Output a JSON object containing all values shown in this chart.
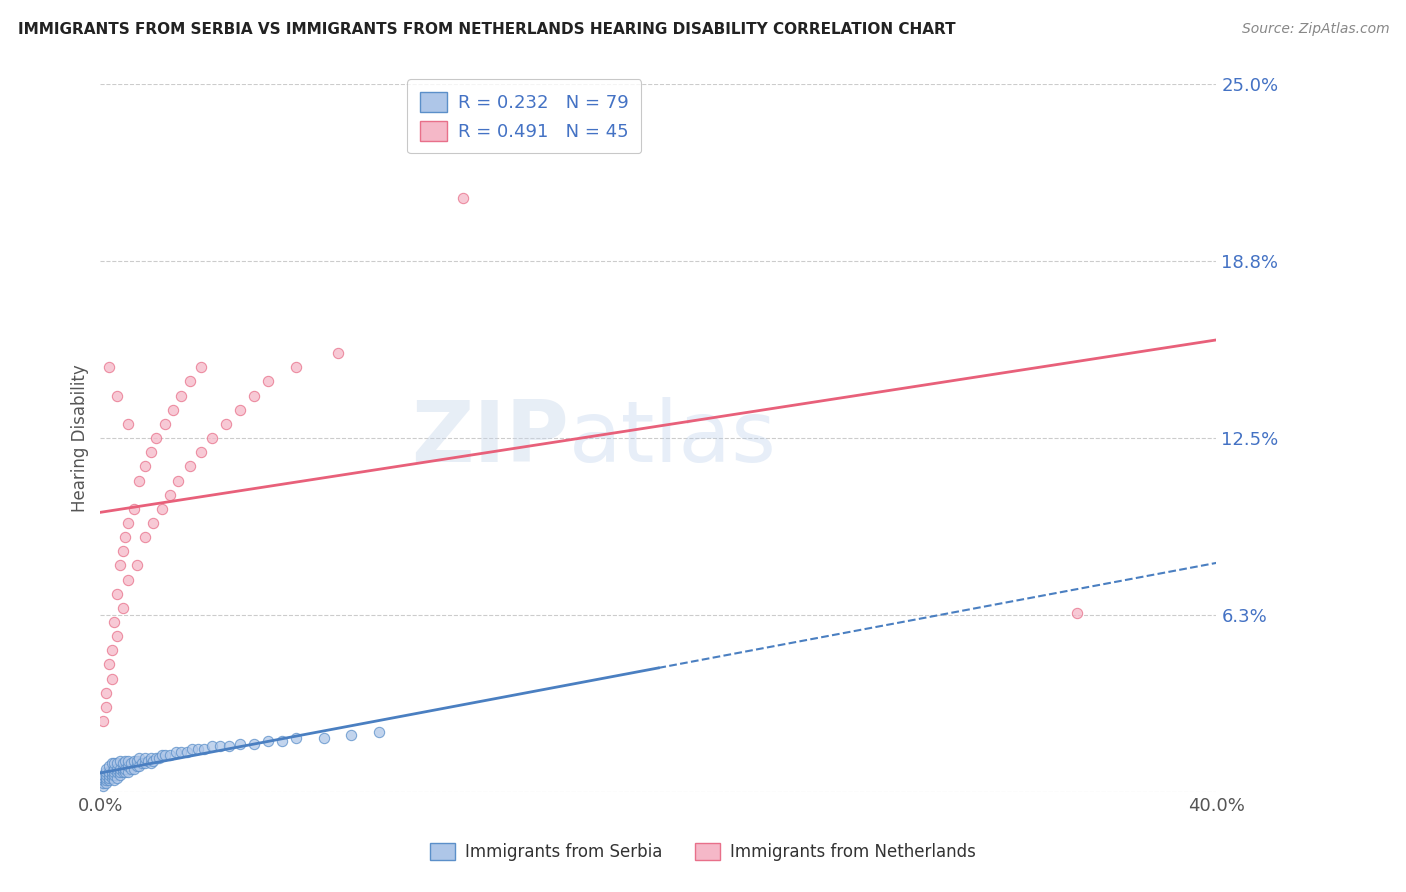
{
  "title": "IMMIGRANTS FROM SERBIA VS IMMIGRANTS FROM NETHERLANDS HEARING DISABILITY CORRELATION CHART",
  "source": "Source: ZipAtlas.com",
  "ylabel_label": "Hearing Disability",
  "ytick_vals": [
    0.0625,
    0.125,
    0.1875,
    0.25
  ],
  "ytick_labels": [
    "6.3%",
    "12.5%",
    "18.8%",
    "25.0%"
  ],
  "xlim": [
    0.0,
    0.4
  ],
  "ylim": [
    0.0,
    0.25
  ],
  "serbia_R": 0.232,
  "serbia_N": 79,
  "netherlands_R": 0.491,
  "netherlands_N": 45,
  "serbia_color": "#aec6e8",
  "netherlands_color": "#f5b8c8",
  "serbia_edge_color": "#5b8fc9",
  "netherlands_edge_color": "#e8708a",
  "serbia_line_color": "#4a7fc1",
  "netherlands_line_color": "#e8607a",
  "watermark_color": "#d0dff0",
  "background_color": "#ffffff",
  "grid_color": "#cccccc",
  "serbia_scatter_x": [
    0.001,
    0.001,
    0.001,
    0.001,
    0.001,
    0.002,
    0.002,
    0.002,
    0.002,
    0.002,
    0.002,
    0.003,
    0.003,
    0.003,
    0.003,
    0.003,
    0.004,
    0.004,
    0.004,
    0.004,
    0.005,
    0.005,
    0.005,
    0.005,
    0.005,
    0.006,
    0.006,
    0.006,
    0.006,
    0.007,
    0.007,
    0.007,
    0.007,
    0.008,
    0.008,
    0.008,
    0.009,
    0.009,
    0.009,
    0.01,
    0.01,
    0.01,
    0.011,
    0.011,
    0.012,
    0.012,
    0.013,
    0.013,
    0.014,
    0.014,
    0.015,
    0.016,
    0.016,
    0.017,
    0.018,
    0.018,
    0.019,
    0.02,
    0.021,
    0.022,
    0.023,
    0.025,
    0.027,
    0.029,
    0.031,
    0.033,
    0.035,
    0.037,
    0.04,
    0.043,
    0.046,
    0.05,
    0.055,
    0.06,
    0.065,
    0.07,
    0.08,
    0.09,
    0.1
  ],
  "serbia_scatter_y": [
    0.002,
    0.003,
    0.004,
    0.005,
    0.006,
    0.003,
    0.004,
    0.005,
    0.006,
    0.007,
    0.008,
    0.004,
    0.005,
    0.006,
    0.007,
    0.009,
    0.005,
    0.006,
    0.007,
    0.01,
    0.004,
    0.006,
    0.007,
    0.008,
    0.01,
    0.005,
    0.007,
    0.008,
    0.01,
    0.006,
    0.007,
    0.008,
    0.011,
    0.007,
    0.008,
    0.01,
    0.007,
    0.008,
    0.011,
    0.007,
    0.009,
    0.011,
    0.008,
    0.01,
    0.008,
    0.011,
    0.009,
    0.011,
    0.009,
    0.012,
    0.01,
    0.01,
    0.012,
    0.011,
    0.01,
    0.012,
    0.011,
    0.012,
    0.012,
    0.013,
    0.013,
    0.013,
    0.014,
    0.014,
    0.014,
    0.015,
    0.015,
    0.015,
    0.016,
    0.016,
    0.016,
    0.017,
    0.017,
    0.018,
    0.018,
    0.019,
    0.019,
    0.02,
    0.021
  ],
  "netherlands_scatter_x": [
    0.001,
    0.002,
    0.003,
    0.004,
    0.005,
    0.006,
    0.007,
    0.008,
    0.009,
    0.01,
    0.012,
    0.014,
    0.016,
    0.018,
    0.02,
    0.023,
    0.026,
    0.029,
    0.032,
    0.036,
    0.002,
    0.004,
    0.006,
    0.008,
    0.01,
    0.013,
    0.016,
    0.019,
    0.022,
    0.025,
    0.028,
    0.032,
    0.036,
    0.04,
    0.045,
    0.05,
    0.055,
    0.06,
    0.07,
    0.085,
    0.003,
    0.006,
    0.01,
    0.13,
    0.35
  ],
  "netherlands_scatter_y": [
    0.025,
    0.035,
    0.045,
    0.05,
    0.06,
    0.07,
    0.08,
    0.085,
    0.09,
    0.095,
    0.1,
    0.11,
    0.115,
    0.12,
    0.125,
    0.13,
    0.135,
    0.14,
    0.145,
    0.15,
    0.03,
    0.04,
    0.055,
    0.065,
    0.075,
    0.08,
    0.09,
    0.095,
    0.1,
    0.105,
    0.11,
    0.115,
    0.12,
    0.125,
    0.13,
    0.135,
    0.14,
    0.145,
    0.15,
    0.155,
    0.15,
    0.14,
    0.13,
    0.21,
    0.063
  ]
}
